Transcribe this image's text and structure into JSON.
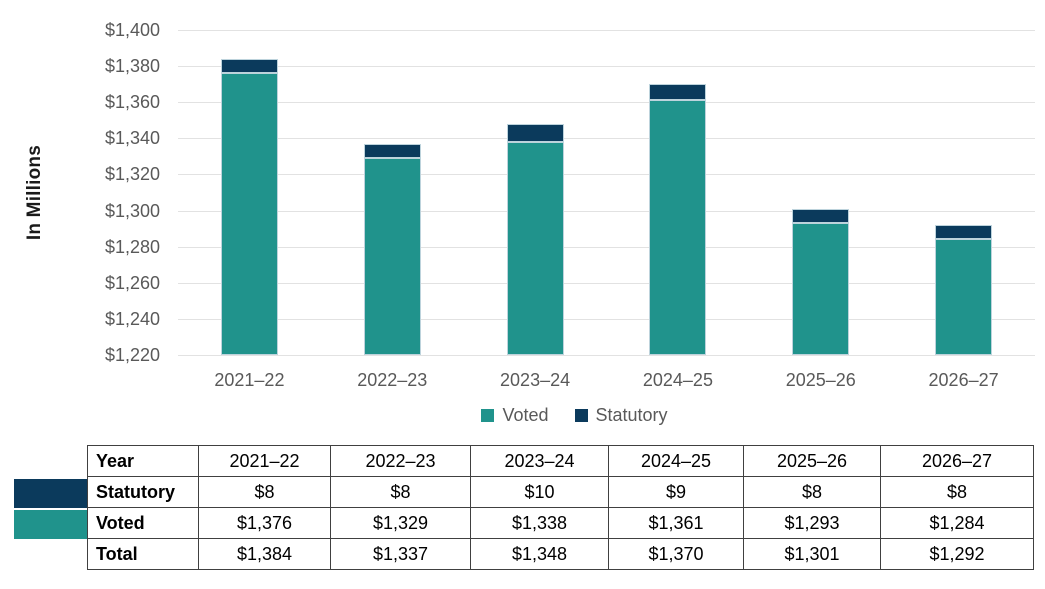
{
  "chart_data": {
    "type": "bar",
    "stacked": true,
    "title": "",
    "ylabel": "In Millions",
    "xlabel": "",
    "ylim": [
      1220,
      1400
    ],
    "grid": true,
    "legend_position": "bottom",
    "categories": [
      "2021–22",
      "2022–23",
      "2023–24",
      "2024–25",
      "2025–26",
      "2026–27"
    ],
    "series": [
      {
        "name": "Voted",
        "color": "#20938c",
        "values": [
          1376,
          1329,
          1338,
          1361,
          1293,
          1284
        ]
      },
      {
        "name": "Statutory",
        "color": "#0b3a5c",
        "values": [
          8,
          8,
          10,
          9,
          8,
          8
        ]
      }
    ],
    "totals": [
      1384,
      1337,
      1348,
      1370,
      1301,
      1292
    ],
    "yticks": [
      {
        "value": 1400,
        "label": "$1,400"
      },
      {
        "value": 1380,
        "label": "$1,380"
      },
      {
        "value": 1360,
        "label": "$1,360"
      },
      {
        "value": 1340,
        "label": "$1,340"
      },
      {
        "value": 1320,
        "label": "$1,320"
      },
      {
        "value": 1300,
        "label": "$1,300"
      },
      {
        "value": 1280,
        "label": "$1,280"
      },
      {
        "value": 1260,
        "label": "$1,260"
      },
      {
        "value": 1240,
        "label": "$1,240"
      },
      {
        "value": 1220,
        "label": "$1,220"
      }
    ]
  },
  "legend": {
    "items": [
      {
        "label": "Voted",
        "color": "#20938c"
      },
      {
        "label": "Statutory",
        "color": "#0b3a5c"
      }
    ]
  },
  "table": {
    "header": {
      "label": "Year",
      "cells": [
        "2021–22",
        "2022–23",
        "2023–24",
        "2024–25",
        "2025–26",
        "2026–27"
      ]
    },
    "rows": [
      {
        "label": "Statutory",
        "swatch": "#0b3a5c",
        "cells": [
          "$8",
          "$8",
          "$10",
          "$9",
          "$8",
          "$8"
        ]
      },
      {
        "label": "Voted",
        "swatch": "#20938c",
        "cells": [
          "$1,376",
          "$1,329",
          "$1,338",
          "$1,361",
          "$1,293",
          "$1,284"
        ]
      },
      {
        "label": "Total",
        "swatch": null,
        "cells": [
          "$1,384",
          "$1,337",
          "$1,348",
          "$1,370",
          "$1,301",
          "$1,292"
        ]
      }
    ]
  },
  "colors": {
    "voted": "#20938c",
    "statutory": "#0b3a5c",
    "gridline": "#e2e2e2",
    "axis_text": "#595959",
    "table_border": "#404040",
    "bar_outline": "#bdd3dc"
  }
}
